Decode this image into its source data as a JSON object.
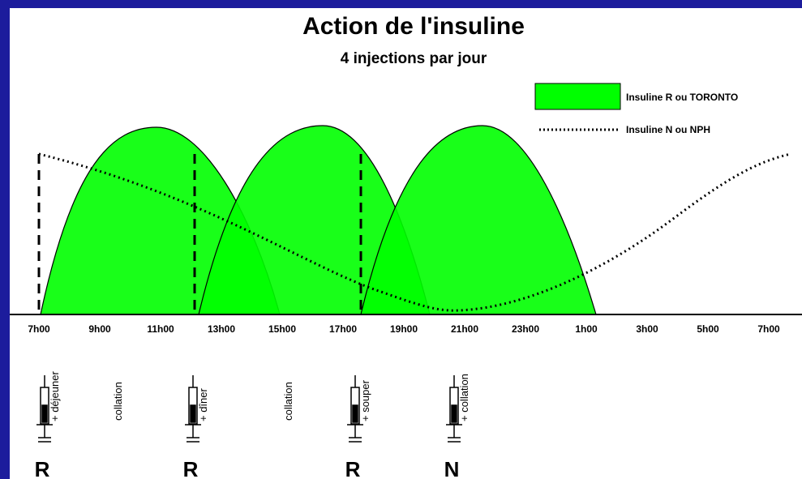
{
  "title": "Action de l'insuline",
  "subtitle": "4 injections par jour",
  "legend": [
    "Insuline R ou TORONTO",
    "Insuline N ou NPH"
  ],
  "times": [
    "7h00",
    "9h00",
    "11h00",
    "13h00",
    "15h00",
    "17h00",
    "19h00",
    "21h00",
    "23h00",
    "1h00",
    "3h00",
    "5h00",
    "7h00"
  ],
  "injections": [
    {
      "label": "+ déjeuner",
      "type": "R"
    },
    {
      "label": "+ dîner",
      "type": "R"
    },
    {
      "label": "+ souper",
      "type": "R"
    },
    {
      "label": "+ collation",
      "type": "N"
    }
  ],
  "snacks": [
    "collation",
    "collation"
  ]
}
